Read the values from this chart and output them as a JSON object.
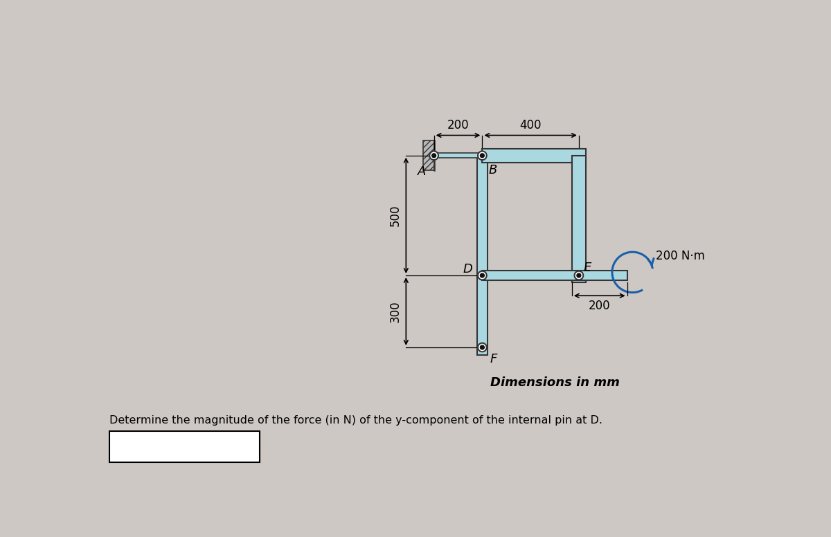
{
  "bg_color": "#cdc8c3",
  "frame_fill": "#aad8e0",
  "frame_edge": "#353535",
  "pin_outer": "#ffffff",
  "pin_inner": "#101010",
  "wall_fill": "#b8b8b8",
  "moment_color": "#1a5faa",
  "text_color": "#111111",
  "dim_200_h": "200",
  "dim_400_h": "400",
  "dim_500_v": "500",
  "dim_300_v": "300",
  "dim_200_r": "200",
  "moment_label": "200 N·m",
  "label_A": "A",
  "label_B": "B",
  "label_D": "D",
  "label_E": "E",
  "label_F": "F",
  "caption": "Dimensions in mm",
  "question": "Determine the magnitude of the force (in N) of the y-component of the internal pin at D."
}
